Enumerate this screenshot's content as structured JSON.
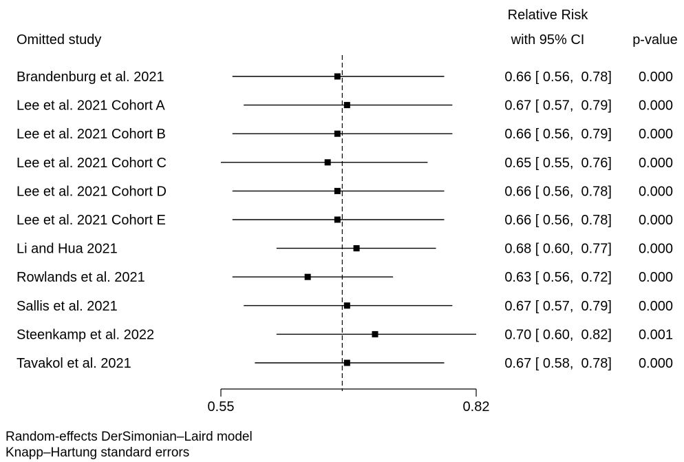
{
  "header": {
    "study_col": "Omitted study",
    "rr_line1": "Relative Risk",
    "rr_line2": "with 95% CI",
    "p_col": "p-value"
  },
  "chart_data": {
    "type": "forest",
    "x_scale": "log",
    "xlim": [
      0.55,
      0.82
    ],
    "xticks": [
      0.55,
      0.82
    ],
    "xtick_labels": [
      "0.55",
      "0.82"
    ],
    "reference_line": 0.665,
    "grid": false,
    "studies": [
      {
        "name": "Brandenburg et al. 2021",
        "rr": 0.66,
        "lo": 0.56,
        "hi": 0.78,
        "rr_text": "0.66 [ 0.56,  0.78]",
        "p": "0.000"
      },
      {
        "name": "Lee et al. 2021 Cohort A",
        "rr": 0.67,
        "lo": 0.57,
        "hi": 0.79,
        "rr_text": "0.67 [ 0.57,  0.79]",
        "p": "0.000"
      },
      {
        "name": "Lee et al. 2021 Cohort B",
        "rr": 0.66,
        "lo": 0.56,
        "hi": 0.79,
        "rr_text": "0.66 [ 0.56,  0.79]",
        "p": "0.000"
      },
      {
        "name": "Lee et al. 2021 Cohort C",
        "rr": 0.65,
        "lo": 0.55,
        "hi": 0.76,
        "rr_text": "0.65 [ 0.55,  0.76]",
        "p": "0.000"
      },
      {
        "name": "Lee et al. 2021 Cohort D",
        "rr": 0.66,
        "lo": 0.56,
        "hi": 0.78,
        "rr_text": "0.66 [ 0.56,  0.78]",
        "p": "0.000"
      },
      {
        "name": "Lee et al. 2021 Cohort E",
        "rr": 0.66,
        "lo": 0.56,
        "hi": 0.78,
        "rr_text": "0.66 [ 0.56,  0.78]",
        "p": "0.000"
      },
      {
        "name": "Li and Hua 2021",
        "rr": 0.68,
        "lo": 0.6,
        "hi": 0.77,
        "rr_text": "0.68 [ 0.60,  0.77]",
        "p": "0.000"
      },
      {
        "name": "Rowlands et al. 2021",
        "rr": 0.63,
        "lo": 0.56,
        "hi": 0.72,
        "rr_text": "0.63 [ 0.56,  0.72]",
        "p": "0.000"
      },
      {
        "name": "Sallis et al. 2021",
        "rr": 0.67,
        "lo": 0.57,
        "hi": 0.79,
        "rr_text": "0.67 [ 0.57,  0.79]",
        "p": "0.000"
      },
      {
        "name": "Steenkamp et al. 2022",
        "rr": 0.7,
        "lo": 0.6,
        "hi": 0.82,
        "rr_text": "0.70 [ 0.60,  0.82]",
        "p": "0.001"
      },
      {
        "name": "Tavakol et al. 2021",
        "rr": 0.67,
        "lo": 0.58,
        "hi": 0.78,
        "rr_text": "0.67 [ 0.58,  0.78]",
        "p": "0.000"
      }
    ]
  },
  "notes": {
    "line1": "Random-effects DerSimonian–Laird model",
    "line2": "Knapp–Hartung standard errors"
  }
}
